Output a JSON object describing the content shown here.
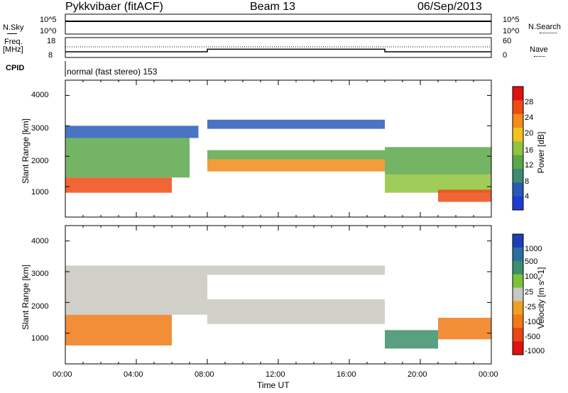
{
  "header": {
    "station": "Pykkvibaer (fitACF)",
    "beam": "Beam 13",
    "date": "06/Sep/2013"
  },
  "strip": {
    "nsky_label": "N.Sky",
    "nsky_ticks": [
      "10^5",
      "10^0"
    ],
    "nsearch_label": "N.Search",
    "nsearch_ticks": [
      "10^5",
      "10^0"
    ],
    "freq_label_1": "Freq.",
    "freq_label_2": "[MHz]",
    "freq_ticks": [
      "18",
      "8"
    ],
    "nave_label": "Nave",
    "nave_ticks": [
      "60",
      "0"
    ],
    "cpid_label": "CPID",
    "cpid_value": "normal (fast stereo) 153"
  },
  "x_ticks": [
    "00:00",
    "04:00",
    "08:00",
    "12:00",
    "16:00",
    "20:00",
    "00:00"
  ],
  "x_label": "Time UT",
  "y_label": "Slant Range [km]",
  "y_ticks": [
    "4000",
    "3000",
    "2000",
    "1000"
  ],
  "power_colorbar": {
    "label": "Power [dB]",
    "ticks": [
      "28",
      "24",
      "20",
      "16",
      "12",
      "8",
      "4"
    ],
    "colors": [
      "#1f3bd6",
      "#2a5ab8",
      "#3d8a6e",
      "#5aa84a",
      "#8fc43c",
      "#f2c21e",
      "#f58a1a",
      "#f04a14",
      "#e01010"
    ]
  },
  "velocity_colorbar": {
    "label": "Velocity [m s^-1]",
    "ticks": [
      "1000",
      "500",
      "100",
      "25",
      "-25",
      "-100",
      "-500",
      "-1000"
    ],
    "colors": [
      "#1a3fb8",
      "#2a6ea0",
      "#3c8e6c",
      "#7cc23a",
      "#c8c8c0",
      "#f0a020",
      "#f07a14",
      "#e84414",
      "#e01010"
    ]
  },
  "chart_data": [
    {
      "type": "line",
      "title": "N.Sky / N.Search",
      "x": [
        "00:00",
        "04:00",
        "08:00",
        "12:00",
        "16:00",
        "20:00",
        "00:00"
      ],
      "series": [
        {
          "name": "N.Sky",
          "values": [
            10000,
            10000,
            10000,
            10000,
            10000,
            10000,
            10000
          ]
        },
        {
          "name": "N.Search",
          "values": [
            10000,
            10000,
            10000,
            10000,
            10000,
            10000,
            8000
          ]
        }
      ],
      "ylim": [
        1,
        100000
      ]
    },
    {
      "type": "line",
      "title": "Freq. / Nave",
      "x": [
        "00:00",
        "08:00",
        "08:00",
        "18:00",
        "18:00",
        "00:00"
      ],
      "series": [
        {
          "name": "Freq. [MHz]",
          "values": [
            10.5,
            10.5,
            12,
            12,
            10.5,
            10.5
          ]
        }
      ],
      "ylim": [
        8,
        18
      ]
    },
    {
      "type": "heatmap",
      "title": "Power [dB]",
      "x_range_hours": [
        0,
        24
      ],
      "ylim": [
        0,
        4500
      ],
      "regions": [
        {
          "t": [
            0,
            6
          ],
          "range": [
            800,
            1300
          ],
          "value": 26
        },
        {
          "t": [
            0,
            7
          ],
          "range": [
            1300,
            2600
          ],
          "value": 14
        },
        {
          "t": [
            0,
            7.5
          ],
          "range": [
            2600,
            3000
          ],
          "value": 8
        },
        {
          "t": [
            8,
            18
          ],
          "range": [
            1500,
            1900
          ],
          "value": 22
        },
        {
          "t": [
            8,
            18
          ],
          "range": [
            1900,
            2200
          ],
          "value": 12
        },
        {
          "t": [
            8,
            18
          ],
          "range": [
            2900,
            3200
          ],
          "value": 8
        },
        {
          "t": [
            18,
            24
          ],
          "range": [
            800,
            1400
          ],
          "value": 16
        },
        {
          "t": [
            18,
            24
          ],
          "range": [
            1400,
            2300
          ],
          "value": 12
        },
        {
          "t": [
            21,
            24
          ],
          "range": [
            500,
            900
          ],
          "value": 24
        }
      ]
    },
    {
      "type": "heatmap",
      "title": "Velocity [m s^-1]",
      "x_range_hours": [
        0,
        24
      ],
      "ylim": [
        0,
        4500
      ],
      "regions": [
        {
          "t": [
            0,
            6
          ],
          "range": [
            600,
            1600
          ],
          "value": -150
        },
        {
          "t": [
            0,
            8
          ],
          "range": [
            1600,
            3200
          ],
          "value": 0
        },
        {
          "t": [
            8,
            18
          ],
          "range": [
            1300,
            2100
          ],
          "value": 0
        },
        {
          "t": [
            8,
            18
          ],
          "range": [
            2900,
            3200
          ],
          "value": 0
        },
        {
          "t": [
            18,
            21
          ],
          "range": [
            500,
            1100
          ],
          "value": 150
        },
        {
          "t": [
            21,
            24
          ],
          "range": [
            800,
            1500
          ],
          "value": -150
        }
      ]
    }
  ]
}
